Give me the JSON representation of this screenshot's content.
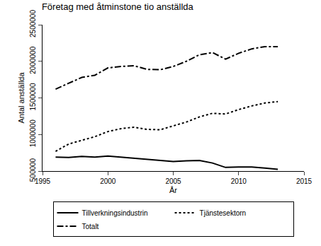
{
  "chart_data": {
    "type": "line",
    "title": "Företag med åtminstone tio anställda",
    "x_label": "År",
    "y_label": "Antal anställda",
    "x": [
      1996,
      1997,
      1998,
      1999,
      2000,
      2001,
      2002,
      2003,
      2004,
      2005,
      2006,
      2007,
      2008,
      2009,
      2010,
      2011,
      2012,
      2013
    ],
    "series": [
      {
        "name": "Tillverkningsindustrin",
        "color": "#000000",
        "line_style": "solid",
        "values": [
          690000,
          685000,
          700000,
          690000,
          705000,
          690000,
          675000,
          660000,
          650000,
          630000,
          640000,
          645000,
          610000,
          550000,
          555000,
          555000,
          540000,
          525000
        ]
      },
      {
        "name": "Tjänstesektorn",
        "color": "#000000",
        "line_style": "dot",
        "values": [
          770000,
          870000,
          920000,
          970000,
          1040000,
          1080000,
          1100000,
          1070000,
          1065000,
          1120000,
          1170000,
          1240000,
          1290000,
          1280000,
          1340000,
          1390000,
          1430000,
          1450000
        ]
      },
      {
        "name": "Totalt",
        "color": "#000000",
        "line_style": "dashdot",
        "values": [
          1620000,
          1700000,
          1780000,
          1810000,
          1910000,
          1930000,
          1940000,
          1890000,
          1885000,
          1930000,
          2000000,
          2090000,
          2120000,
          2030000,
          2110000,
          2170000,
          2200000,
          2200000
        ]
      }
    ],
    "xlim": [
      1995,
      2015
    ],
    "xticks": [
      1995,
      2000,
      2005,
      2010,
      2015
    ],
    "ylim": [
      500000,
      2500000
    ],
    "yticks": [
      500000,
      1000000,
      1500000,
      2000000,
      2500000
    ],
    "grid": false,
    "legend": "bottom"
  }
}
